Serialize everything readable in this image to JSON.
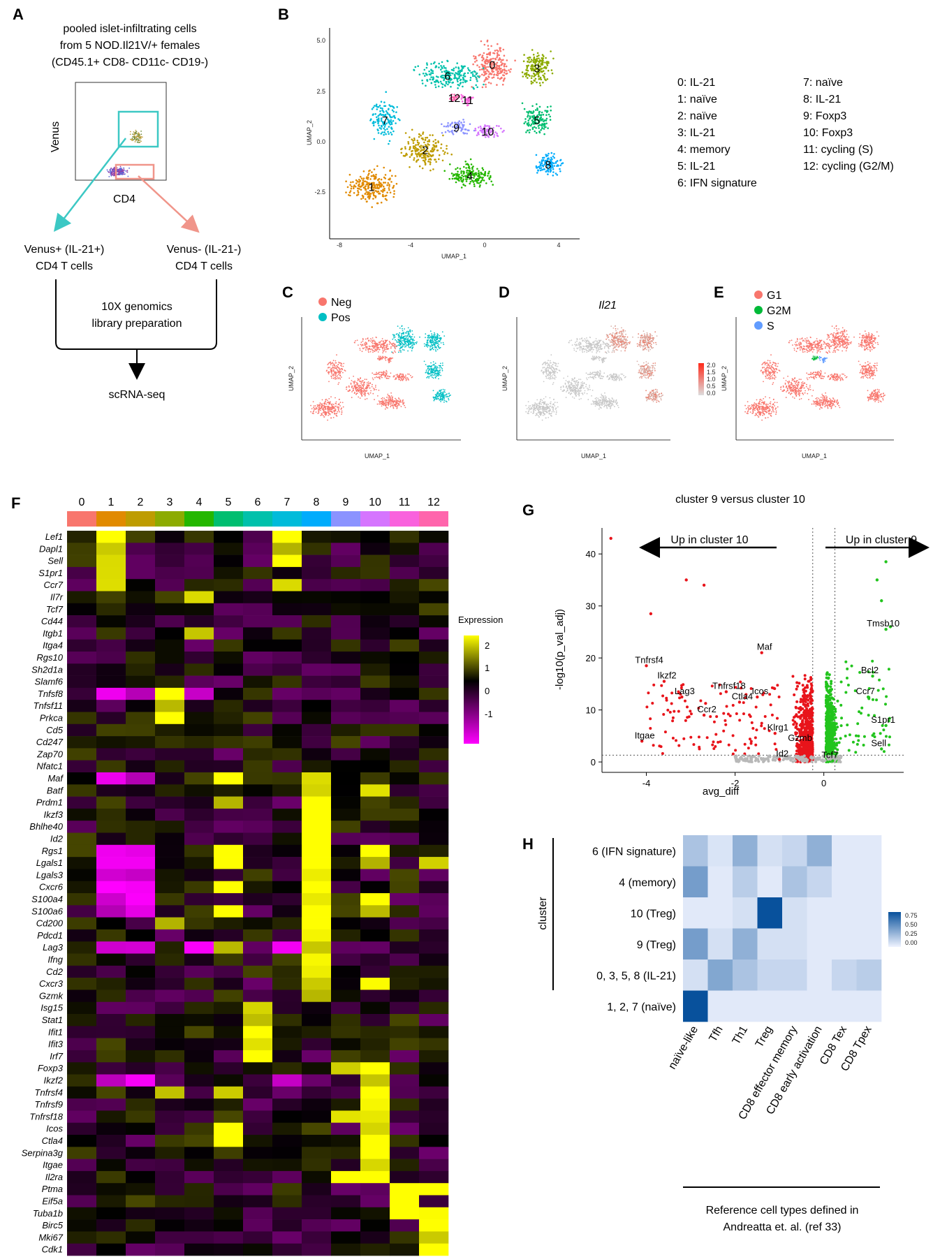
{
  "panels": {
    "A": {
      "letter": "A",
      "title_lines": [
        "pooled islet-infiltrating cells",
        "from 5 NOD.Il21V/+ females",
        "(CD45.1+ CD8- CD11c- CD19-)"
      ],
      "y_axis": "Venus",
      "x_axis": "CD4",
      "gate_pos_lines": [
        "Venus+ (IL-21+)",
        "CD4 T cells"
      ],
      "gate_neg_lines": [
        "Venus- (IL-21-)",
        "CD4 T cells"
      ],
      "process_lines": [
        "10X genomics",
        "library preparation"
      ],
      "output": "scRNA-seq"
    },
    "B": {
      "letter": "B",
      "xlabel": "UMAP_1",
      "ylabel": "UMAP_2",
      "x_ticks": [
        "-8",
        "-4",
        "0",
        "4"
      ],
      "y_ticks": [
        "5.0",
        "2.5",
        "0.0",
        "-2.5"
      ],
      "legend_col1": [
        "0: IL-21",
        "1: naïve",
        "2: naïve",
        "3: IL-21",
        "4: memory",
        "5: IL-21",
        "6: IFN signature"
      ],
      "legend_col2": [
        "7: naïve",
        "8: IL-21",
        "9: Foxp3",
        "10: Foxp3",
        "11: cycling (S)",
        "12: cycling (G2/M)"
      ],
      "clusters": [
        {
          "id": "0",
          "color": "#f8766d"
        },
        {
          "id": "1",
          "color": "#e18a00"
        },
        {
          "id": "2",
          "color": "#be9c00"
        },
        {
          "id": "3",
          "color": "#8cab00"
        },
        {
          "id": "4",
          "color": "#24b700"
        },
        {
          "id": "5",
          "color": "#00be70"
        },
        {
          "id": "6",
          "color": "#00c1ab"
        },
        {
          "id": "7",
          "color": "#00bbda"
        },
        {
          "id": "8",
          "color": "#00acfc"
        },
        {
          "id": "9",
          "color": "#8b93ff"
        },
        {
          "id": "10",
          "color": "#d575fe"
        },
        {
          "id": "11",
          "color": "#f962dd"
        },
        {
          "id": "12",
          "color": "#ff65ac"
        }
      ]
    },
    "C": {
      "letter": "C",
      "legend": [
        "Neg",
        "Pos"
      ],
      "colors": [
        "#f8766d",
        "#00bfc4"
      ],
      "xlabel": "UMAP_1",
      "ylabel": "UMAP_2"
    },
    "D": {
      "letter": "D",
      "title": "Il21",
      "scale_ticks": [
        "2.0",
        "1.5",
        "1.0",
        "0.5",
        "0.0"
      ],
      "xlabel": "UMAP_1",
      "ylabel": "UMAP_2"
    },
    "E": {
      "letter": "E",
      "legend": [
        "G1",
        "G2M",
        "S"
      ],
      "colors": [
        "#f8766d",
        "#00ba38",
        "#619cff"
      ],
      "xlabel": "UMAP_1",
      "ylabel": "UMAP_2"
    },
    "F": {
      "letter": "F",
      "legend_title": "Expression",
      "legend_ticks": [
        "2",
        "1",
        "0",
        "-1"
      ],
      "columns": [
        "0",
        "1",
        "2",
        "3",
        "4",
        "5",
        "6",
        "7",
        "8",
        "9",
        "10",
        "11",
        "12"
      ],
      "genes": [
        "Lef1",
        "Dapl1",
        "Sell",
        "S1pr1",
        "Ccr7",
        "Il7r",
        "Tcf7",
        "Cd44",
        "Itgb1",
        "Itga4",
        "Rgs10",
        "Sh2d1a",
        "Slamf6",
        "Tnfsf8",
        "Tnfsf11",
        "Prkca",
        "Cd5",
        "Cd247",
        "Zap70",
        "Nfatc1",
        "Maf",
        "Batf",
        "Prdm1",
        "Ikzf3",
        "Bhlhe40",
        "Id2",
        "Rgs1",
        "Lgals1",
        "Lgals3",
        "Cxcr6",
        "S100a4",
        "S100a6",
        "Cd200",
        "Pdcd1",
        "Lag3",
        "Ifng",
        "Cd2",
        "Cxcr3",
        "Gzmk",
        "Isg15",
        "Stat1",
        "Ifit1",
        "Ifit3",
        "Irf7",
        "Foxp3",
        "Ikzf2",
        "Tnfrsf4",
        "Tnfrsf9",
        "Tnfrsf18",
        "Icos",
        "Ctla4",
        "Serpina3g",
        "Itgae",
        "Il2ra",
        "Ptma",
        "Eif5a",
        "Tuba1b",
        "Birc5",
        "Mki67",
        "Cdk1"
      ]
    },
    "G": {
      "letter": "G",
      "title": "cluster 9 versus cluster 10",
      "left_arrow": "Up in cluster 10",
      "right_arrow": "Up in cluster 9",
      "xlabel": "avg_diff",
      "ylabel": "-log10(p_val_adj)",
      "x_ticks": [
        "-4",
        "-2",
        "0"
      ],
      "y_ticks": [
        "0",
        "10",
        "20",
        "30",
        "40"
      ]
    },
    "H": {
      "letter": "H",
      "ylabel": "cluster",
      "rows": [
        "6 (IFN signature)",
        "4 (memory)",
        "10 (Treg)",
        "9 (Treg)",
        "0, 3, 5, 8 (IL-21)",
        "1, 2, 7 (naïve)"
      ],
      "cols": [
        "naïve-like",
        "Tfh",
        "Th1",
        "Treg",
        "CD8 effector memory",
        "CD8 early activation",
        "CD8 Tex",
        "CD8 Tpex"
      ],
      "scale_ticks": [
        "0.75",
        "0.50",
        "0.25",
        "0.00"
      ],
      "footer_lines": [
        "Reference cell types defined in",
        "Andreatta et. al. (ref 33)"
      ]
    }
  },
  "chart_data": [
    {
      "type": "scatter",
      "panel": "G",
      "title": "cluster 9 versus cluster 10",
      "xlabel": "avg_diff",
      "ylabel": "-log10(p_val_adj)",
      "xlim": [
        -5,
        1.8
      ],
      "ylim": [
        -2,
        45
      ],
      "labeled_points": [
        {
          "label": "Tnfrsf4",
          "x": -4.0,
          "y": 18.5
        },
        {
          "label": "Ikzf2",
          "x": -3.6,
          "y": 15.5
        },
        {
          "label": "Lag3",
          "x": -3.2,
          "y": 12.5
        },
        {
          "label": "Ccr2",
          "x": -2.7,
          "y": 9.0
        },
        {
          "label": "Itgae",
          "x": -4.1,
          "y": 4.0
        },
        {
          "label": "Tnfrsf18",
          "x": -2.2,
          "y": 13.5
        },
        {
          "label": "Icos",
          "x": -1.5,
          "y": 12.5
        },
        {
          "label": "Ctla4",
          "x": -1.9,
          "y": 11.5
        },
        {
          "label": "Maf",
          "x": -1.4,
          "y": 21.0
        },
        {
          "label": "Klrg1",
          "x": -1.1,
          "y": 5.5
        },
        {
          "label": "Gzmb",
          "x": -0.6,
          "y": 3.5
        },
        {
          "label": "Id2",
          "x": -1.0,
          "y": 0.5
        },
        {
          "label": "Tcf7",
          "x": 0.2,
          "y": 0.2
        },
        {
          "label": "Tmsb10",
          "x": 1.4,
          "y": 25.5
        },
        {
          "label": "Bcl2",
          "x": 1.1,
          "y": 16.5
        },
        {
          "label": "Ccr7",
          "x": 1.0,
          "y": 12.5
        },
        {
          "label": "S1pr1",
          "x": 1.4,
          "y": 7.0
        },
        {
          "label": "Sell",
          "x": 1.3,
          "y": 2.5
        }
      ]
    },
    {
      "type": "heatmap",
      "panel": "H",
      "rows": [
        "6 (IFN signature)",
        "4 (memory)",
        "10 (Treg)",
        "9 (Treg)",
        "0, 3, 5, 8 (IL-21)",
        "1, 2, 7 (naïve)"
      ],
      "cols": [
        "naïve-like",
        "Tfh",
        "Th1",
        "Treg",
        "CD8 effector memory",
        "CD8 early activation",
        "CD8 Tex",
        "CD8 Tpex"
      ],
      "values": [
        [
          0.25,
          0.08,
          0.35,
          0.1,
          0.15,
          0.35,
          0.05,
          0.05
        ],
        [
          0.45,
          0.05,
          0.2,
          0.05,
          0.25,
          0.15,
          0.05,
          0.05
        ],
        [
          0.05,
          0.05,
          0.1,
          0.85,
          0.1,
          0.05,
          0.05,
          0.05
        ],
        [
          0.45,
          0.1,
          0.35,
          0.1,
          0.1,
          0.05,
          0.05,
          0.05
        ],
        [
          0.1,
          0.4,
          0.25,
          0.15,
          0.15,
          0.05,
          0.15,
          0.2
        ],
        [
          0.9,
          0.05,
          0.05,
          0.05,
          0.05,
          0.05,
          0.05,
          0.05
        ]
      ],
      "scale_range": [
        0,
        0.85
      ]
    }
  ]
}
